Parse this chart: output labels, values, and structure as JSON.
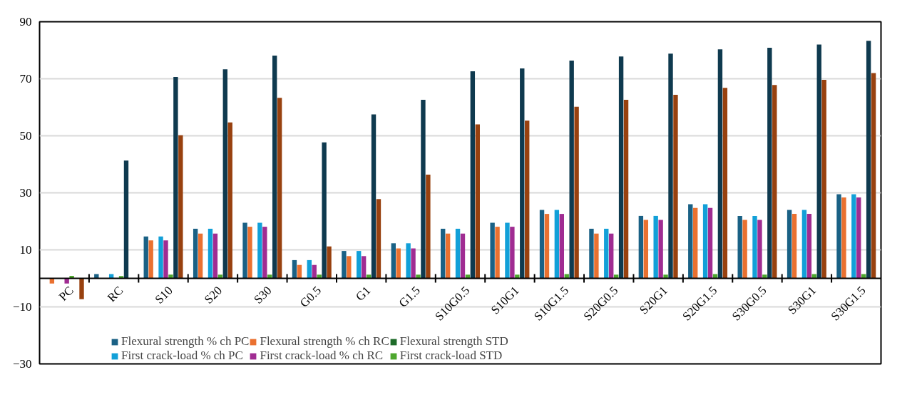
{
  "chart_data": {
    "type": "bar",
    "categories": [
      "PC",
      "RC",
      "S10",
      "S20",
      "S30",
      "G0.5",
      "G1",
      "G1.5",
      "S10G0.5",
      "S10G1",
      "S10G1.5",
      "S20G0.5",
      "S20G1",
      "S20G1.5",
      "S30G0.5",
      "S30G1",
      "S30G1.5"
    ],
    "series": [
      {
        "name": "Flexural strength % ch PC",
        "color": "#1a6185",
        "values": [
          0,
          1.5,
          14.7,
          17.4,
          19.5,
          6.4,
          9.6,
          12.3,
          17.4,
          19.5,
          24.0,
          17.4,
          21.9,
          26.0,
          21.9,
          24.0,
          29.5
        ]
      },
      {
        "name": "Flexural strength % ch RC",
        "color": "#ea7130",
        "values": [
          -1.8,
          0,
          13.3,
          15.7,
          18.1,
          4.7,
          7.8,
          10.5,
          15.7,
          18.1,
          22.6,
          15.7,
          20.5,
          24.7,
          20.5,
          22.6,
          28.4
        ]
      },
      {
        "name": "Flexural strength STD",
        "color": "#1e6b2a",
        "values": [
          0,
          0,
          0,
          0,
          0,
          0,
          0,
          0,
          0,
          0,
          0,
          0,
          0,
          0,
          0,
          0,
          0
        ]
      },
      {
        "name": "First crack-load % ch PC",
        "color": "#12a0d8",
        "values": [
          0,
          1.5,
          14.7,
          17.4,
          19.5,
          6.4,
          9.6,
          12.3,
          17.4,
          19.5,
          24.0,
          17.4,
          21.9,
          26.0,
          21.9,
          24.0,
          29.5
        ]
      },
      {
        "name": "First crack-load % ch RC",
        "color": "#a02c92",
        "values": [
          -1.8,
          0,
          13.3,
          15.7,
          18.1,
          4.7,
          7.8,
          10.5,
          15.7,
          18.1,
          22.6,
          15.7,
          20.5,
          24.7,
          20.5,
          22.6,
          28.4
        ]
      },
      {
        "name": "First crack-load STD",
        "color": "#4ea72e",
        "values": [
          0.9,
          0.8,
          1.3,
          1.3,
          1.3,
          1.3,
          1.3,
          1.3,
          1.3,
          1.3,
          1.5,
          1.3,
          1.3,
          1.5,
          1.3,
          1.5,
          1.5
        ]
      },
      {
        "color": "#0f3a4f",
        "values": [
          0,
          41.3,
          70.6,
          73.3,
          78.1,
          47.7,
          57.5,
          62.6,
          72.6,
          73.6,
          76.4,
          77.8,
          78.8,
          80.3,
          80.9,
          82.0,
          83.3
        ]
      },
      {
        "color": "#98410f",
        "values": [
          -7.3,
          0,
          50.2,
          54.7,
          63.3,
          11.2,
          27.8,
          36.4,
          54.0,
          55.3,
          60.2,
          62.6,
          64.4,
          66.8,
          67.8,
          69.6,
          72.0
        ]
      }
    ],
    "ylim": [
      -30,
      90
    ],
    "yticks": [
      -30,
      -10,
      10,
      30,
      50,
      70,
      90
    ],
    "grid": "y",
    "legend": "bottom"
  }
}
